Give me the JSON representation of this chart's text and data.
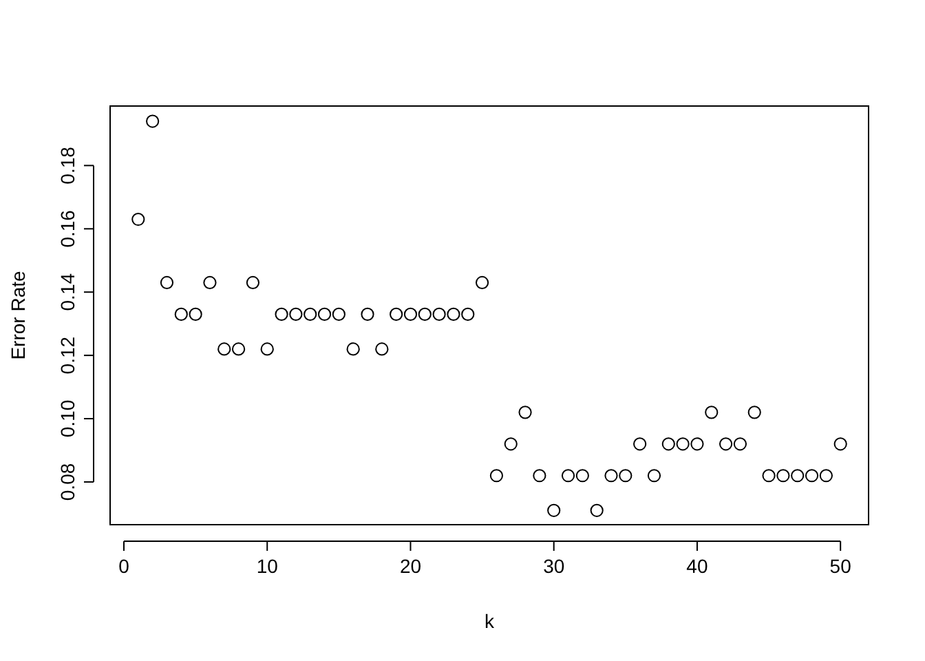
{
  "chart_data": {
    "type": "scatter",
    "xlabel": "k",
    "ylabel": "Error Rate",
    "x": [
      1,
      2,
      3,
      4,
      5,
      6,
      7,
      8,
      9,
      10,
      11,
      12,
      13,
      14,
      15,
      16,
      17,
      18,
      19,
      20,
      21,
      22,
      23,
      24,
      25,
      26,
      27,
      28,
      29,
      30,
      31,
      32,
      33,
      34,
      35,
      36,
      37,
      38,
      39,
      40,
      41,
      42,
      43,
      44,
      45,
      46,
      47,
      48,
      49,
      50
    ],
    "series": [
      {
        "color": "#000000",
        "values": [
          0.163,
          0.194,
          0.143,
          0.133,
          0.133,
          0.143,
          0.122,
          0.122,
          0.143,
          0.122,
          0.133,
          0.133,
          0.133,
          0.133,
          0.133,
          0.122,
          0.133,
          0.122,
          0.133,
          0.133,
          0.133,
          0.133,
          0.133,
          0.133,
          0.143,
          0.082,
          0.092,
          0.102,
          0.082,
          0.071,
          0.082,
          0.082,
          0.071,
          0.082,
          0.082,
          0.092,
          0.082,
          0.092,
          0.092,
          0.092,
          0.102,
          0.092,
          0.092,
          0.102,
          0.082,
          0.082,
          0.082,
          0.082,
          0.082,
          0.092
        ]
      }
    ],
    "xlim": [
      -0.96,
      51.96
    ],
    "ylim": [
      0.0665,
      0.1988
    ],
    "xticks": [
      0,
      10,
      20,
      30,
      40,
      50
    ],
    "yticks": [
      {
        "value": 0.08,
        "label": "0.08"
      },
      {
        "value": 0.1,
        "label": "0.10"
      },
      {
        "value": 0.12,
        "label": "0.12"
      },
      {
        "value": 0.14,
        "label": "0.14"
      },
      {
        "value": 0.16,
        "label": "0.16"
      },
      {
        "value": 0.18,
        "label": "0.18"
      }
    ],
    "marker": "circle"
  }
}
